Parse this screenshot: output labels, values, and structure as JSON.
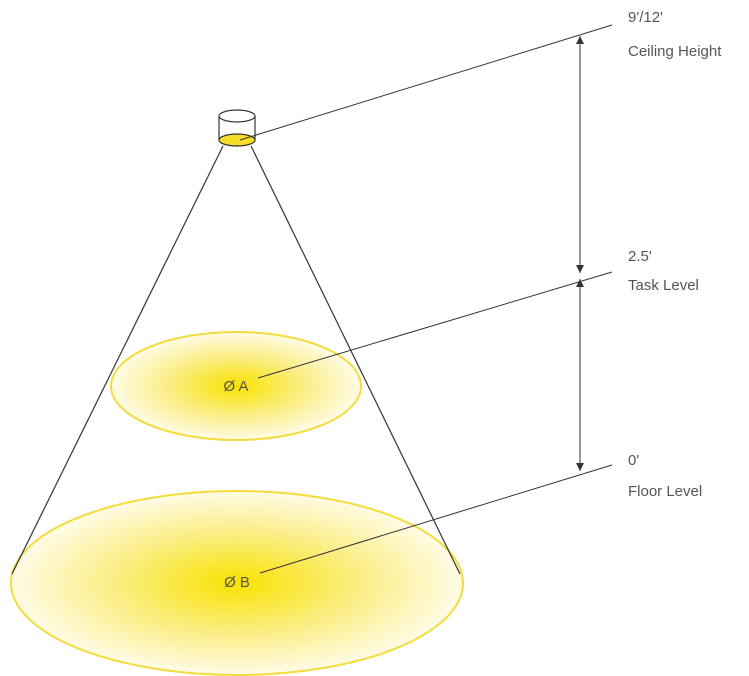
{
  "levels": [
    {
      "height": "9'/12'",
      "label": "Ceiling Height"
    },
    {
      "height": "2.5'",
      "label": "Task Level"
    },
    {
      "height": "0'",
      "label": "Floor Level"
    }
  ],
  "spots": [
    "Ø A",
    "Ø B"
  ]
}
